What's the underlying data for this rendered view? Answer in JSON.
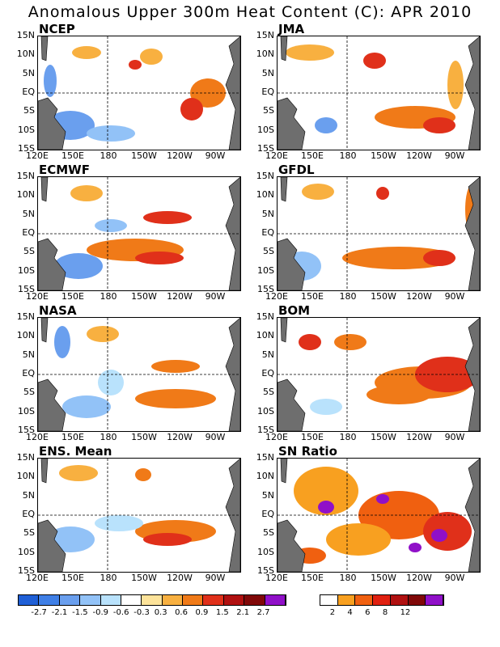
{
  "title": "Anomalous Upper 300m Heat Content (C): APR 2010",
  "x_ticks": [
    "120E",
    "150E",
    "180",
    "150W",
    "120W",
    "90W"
  ],
  "y_ticks": [
    "15N",
    "10N",
    "5N",
    "EQ",
    "5S",
    "10S",
    "15S"
  ],
  "panels": [
    {
      "label": "NCEP"
    },
    {
      "label": "JMA"
    },
    {
      "label": "ECMWF"
    },
    {
      "label": "GFDL"
    },
    {
      "label": "NASA"
    },
    {
      "label": "BOM"
    },
    {
      "label": "ENS. Mean"
    },
    {
      "label": "SN Ratio"
    }
  ],
  "colorbar_anom": {
    "colors": [
      "#1f5fd6",
      "#3f7fe6",
      "#6a9fee",
      "#92c2f7",
      "#b9e2fc",
      "#ffffff",
      "#fde39a",
      "#f8b040",
      "#f07a18",
      "#e0301a",
      "#b01010",
      "#800808",
      "#9010c8"
    ],
    "labels": [
      "-2.7",
      "-2.1",
      "-1.5",
      "-0.9",
      "-0.6",
      "-0.3",
      "0.3",
      "0.6",
      "0.9",
      "1.5",
      "2.1",
      "2.7"
    ]
  },
  "colorbar_sn": {
    "colors": [
      "#ffffff",
      "#f8a020",
      "#f06010",
      "#e02010",
      "#b01010",
      "#800808",
      "#9010c8"
    ],
    "labels": [
      "2",
      "4",
      "6",
      "8",
      "12"
    ]
  }
}
